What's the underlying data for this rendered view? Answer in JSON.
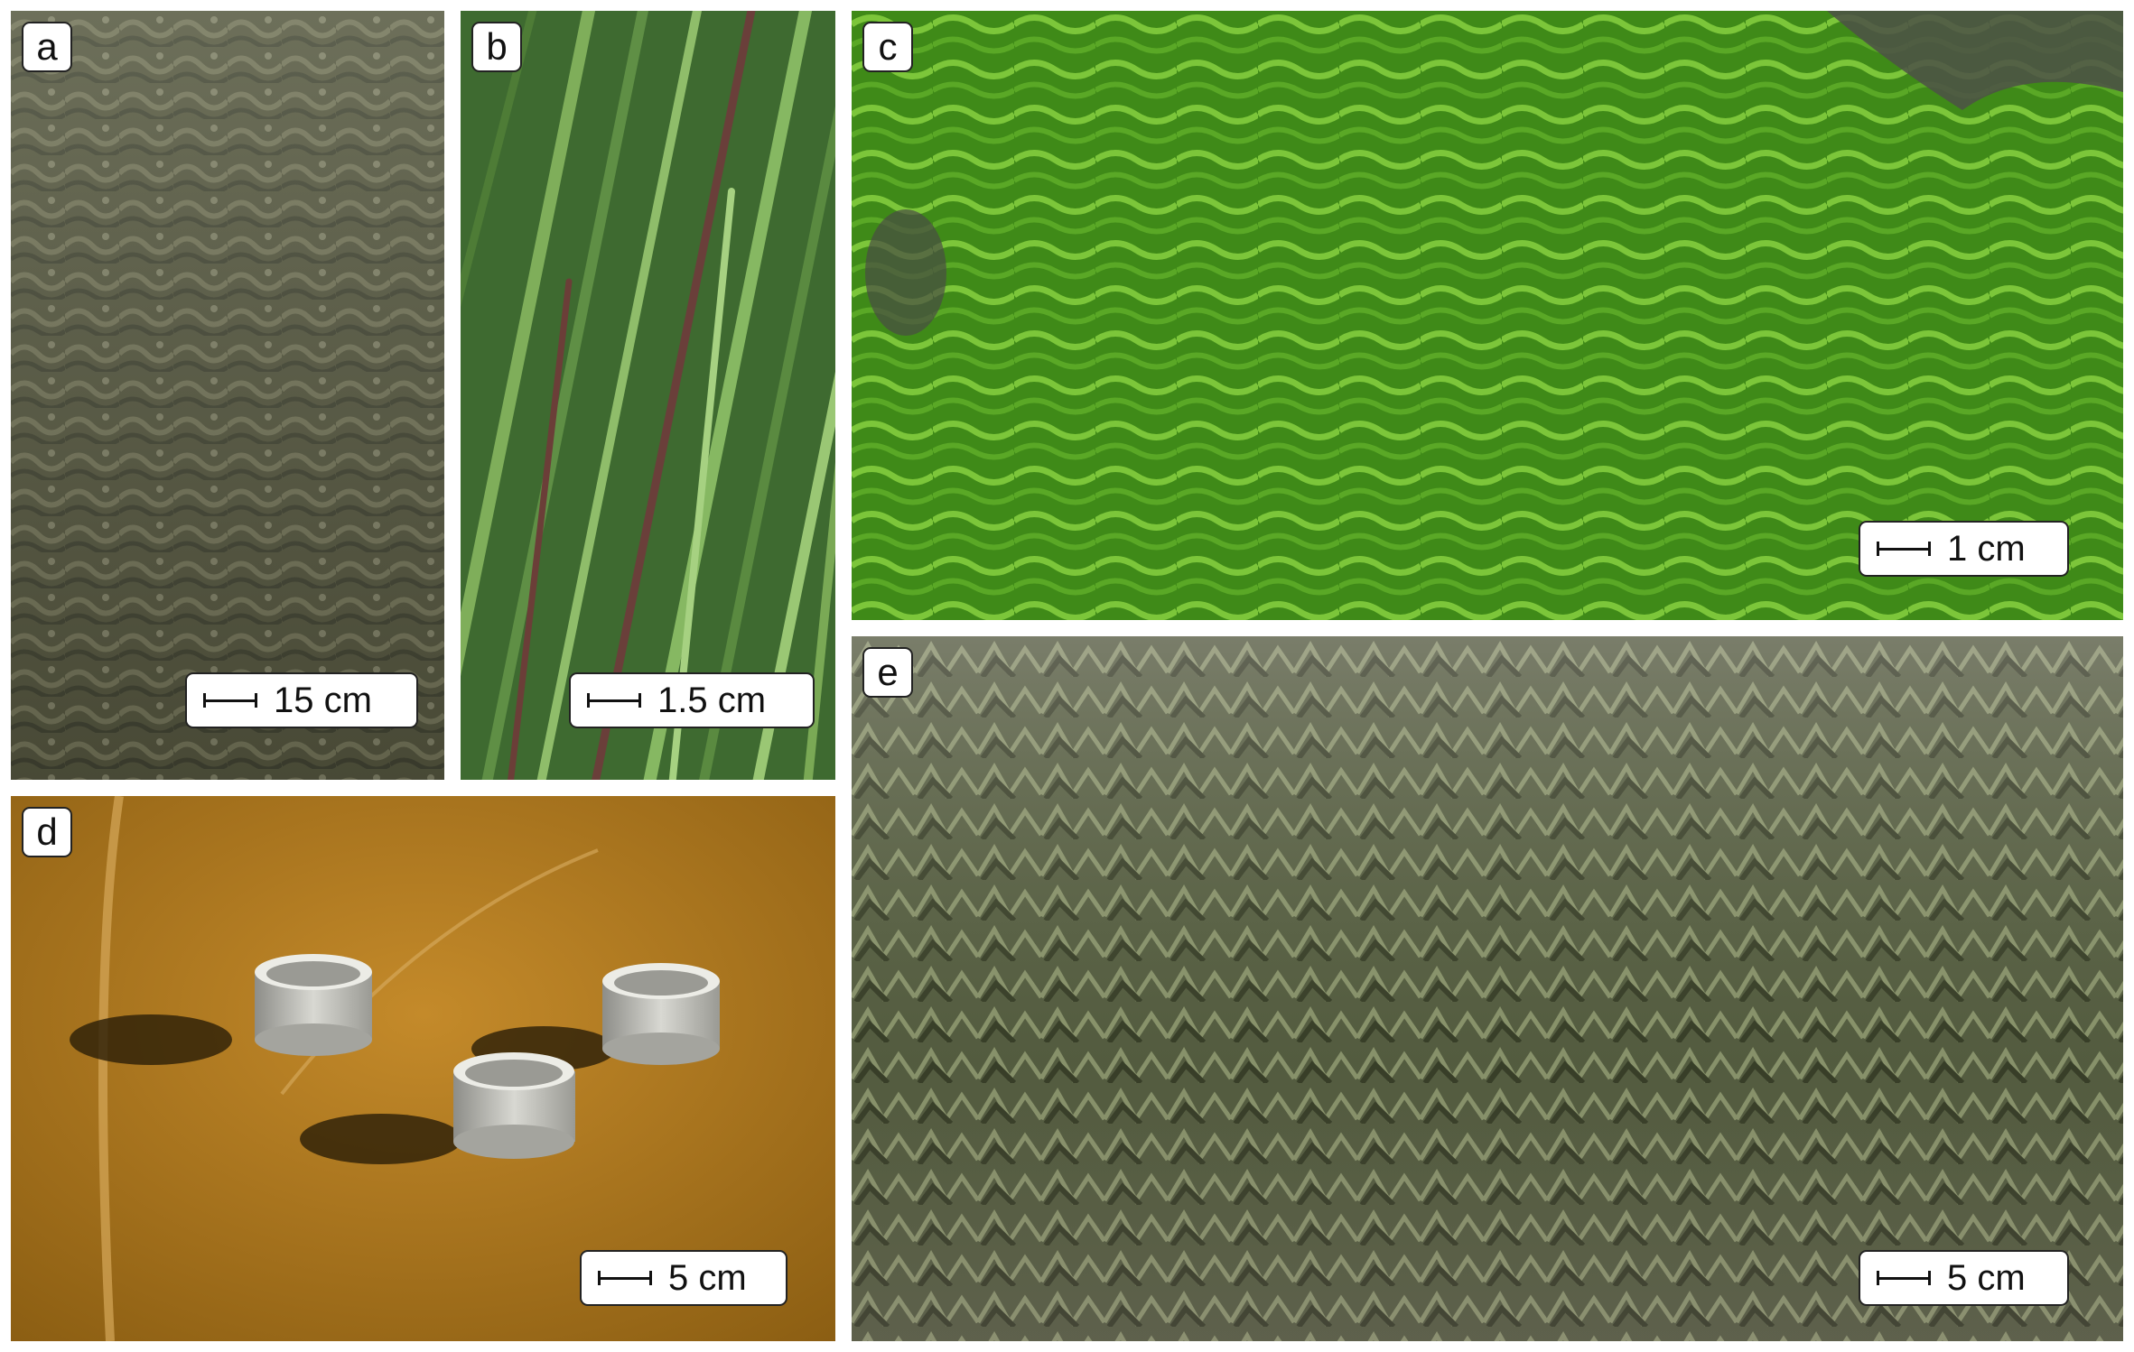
{
  "panels": [
    {
      "id": "a",
      "letter": "a",
      "scale": "15 cm",
      "subject": "brown seaweed canopy on tidal flat"
    },
    {
      "id": "b",
      "letter": "b",
      "scale": "1.5 cm",
      "subject": "seagrass leaves"
    },
    {
      "id": "c",
      "letter": "c",
      "scale": "1 cm",
      "subject": "green macroalgae mat"
    },
    {
      "id": "d",
      "letter": "d",
      "scale": "5 cm",
      "subject": "three white cylindrical rings on orange sediment"
    },
    {
      "id": "e",
      "letter": "e",
      "scale": "5 cm",
      "subject": "algae-covered mud surface"
    }
  ],
  "colors": {
    "a_base": "#5b5c4a",
    "b_base": "#4d7a3a",
    "c_base": "#4c9a1e",
    "d_base": "#b07a1d",
    "e_base": "#5a5e48"
  }
}
